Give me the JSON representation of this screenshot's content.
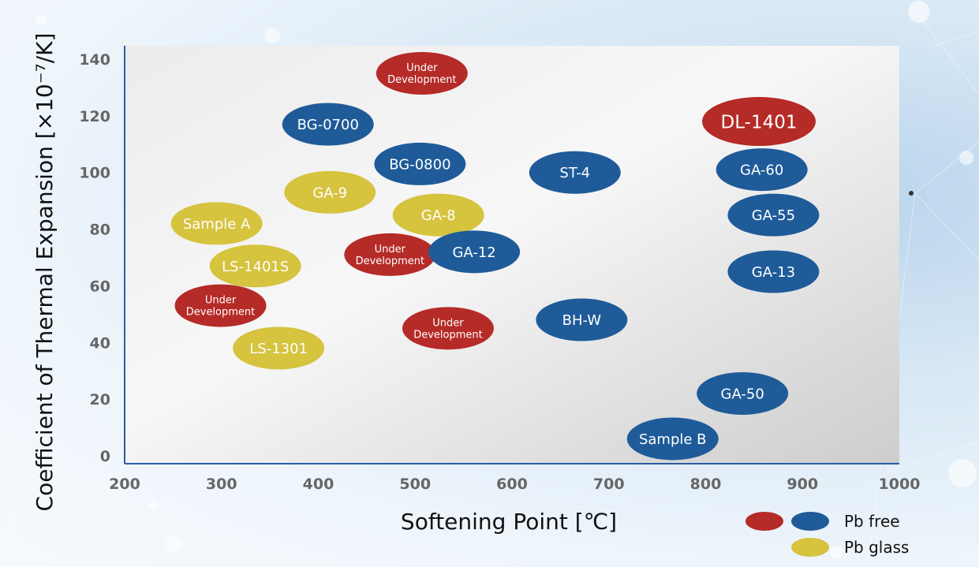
{
  "chart_data": {
    "type": "scatter",
    "xlabel": "Softening Point [℃]",
    "ylabel": "Coefficient of Thermal Expansion [×10⁻⁷/K]",
    "xlim": [
      200,
      1000
    ],
    "ylim": [
      0,
      140
    ],
    "x_ticks": [
      "200",
      "300",
      "400",
      "500",
      "600",
      "700",
      "800",
      "900",
      "1000"
    ],
    "y_ticks": [
      "0",
      "20",
      "40",
      "60",
      "80",
      "100",
      "120",
      "140"
    ],
    "grid": false,
    "legend_placement": "bottom-right",
    "colors": {
      "pb_free_red": "#b52b27",
      "pb_free_blue": "#1f5b99",
      "pb_glass": "#d6c33e"
    },
    "legend": [
      {
        "label": "Pb free",
        "colors": [
          "#b52b27",
          "#1f5b99"
        ]
      },
      {
        "label": "Pb glass",
        "colors": [
          "#d6c33e"
        ]
      }
    ],
    "points": [
      {
        "label": "Under Development",
        "x": 507,
        "y": 135,
        "group": "red"
      },
      {
        "label": "BG-0700",
        "x": 410,
        "y": 117,
        "group": "blue"
      },
      {
        "label": "DL-1401",
        "x": 855,
        "y": 118,
        "group": "red"
      },
      {
        "label": "BG-0800",
        "x": 505,
        "y": 103,
        "group": "blue"
      },
      {
        "label": "ST-4",
        "x": 665,
        "y": 100,
        "group": "blue"
      },
      {
        "label": "GA-60",
        "x": 858,
        "y": 101,
        "group": "blue"
      },
      {
        "label": "GA-9",
        "x": 412,
        "y": 93,
        "group": "yellow"
      },
      {
        "label": "GA-8",
        "x": 524,
        "y": 85,
        "group": "yellow"
      },
      {
        "label": "GA-55",
        "x": 870,
        "y": 85,
        "group": "blue"
      },
      {
        "label": "Sample A",
        "x": 295,
        "y": 82,
        "group": "yellow"
      },
      {
        "label": "Under Development",
        "x": 474,
        "y": 71,
        "group": "red"
      },
      {
        "label": "GA-12",
        "x": 561,
        "y": 72,
        "group": "blue"
      },
      {
        "label": "LS-1401S",
        "x": 335,
        "y": 67,
        "group": "yellow"
      },
      {
        "label": "GA-13",
        "x": 870,
        "y": 65,
        "group": "blue"
      },
      {
        "label": "Under Development",
        "x": 299,
        "y": 53,
        "group": "red"
      },
      {
        "label": "BH-W",
        "x": 672,
        "y": 48,
        "group": "blue"
      },
      {
        "label": "Under Development",
        "x": 534,
        "y": 45,
        "group": "red"
      },
      {
        "label": "LS-1301",
        "x": 359,
        "y": 38,
        "group": "yellow"
      },
      {
        "label": "GA-50",
        "x": 838,
        "y": 22,
        "group": "blue"
      },
      {
        "label": "Sample B",
        "x": 766,
        "y": 6,
        "group": "blue"
      }
    ]
  }
}
